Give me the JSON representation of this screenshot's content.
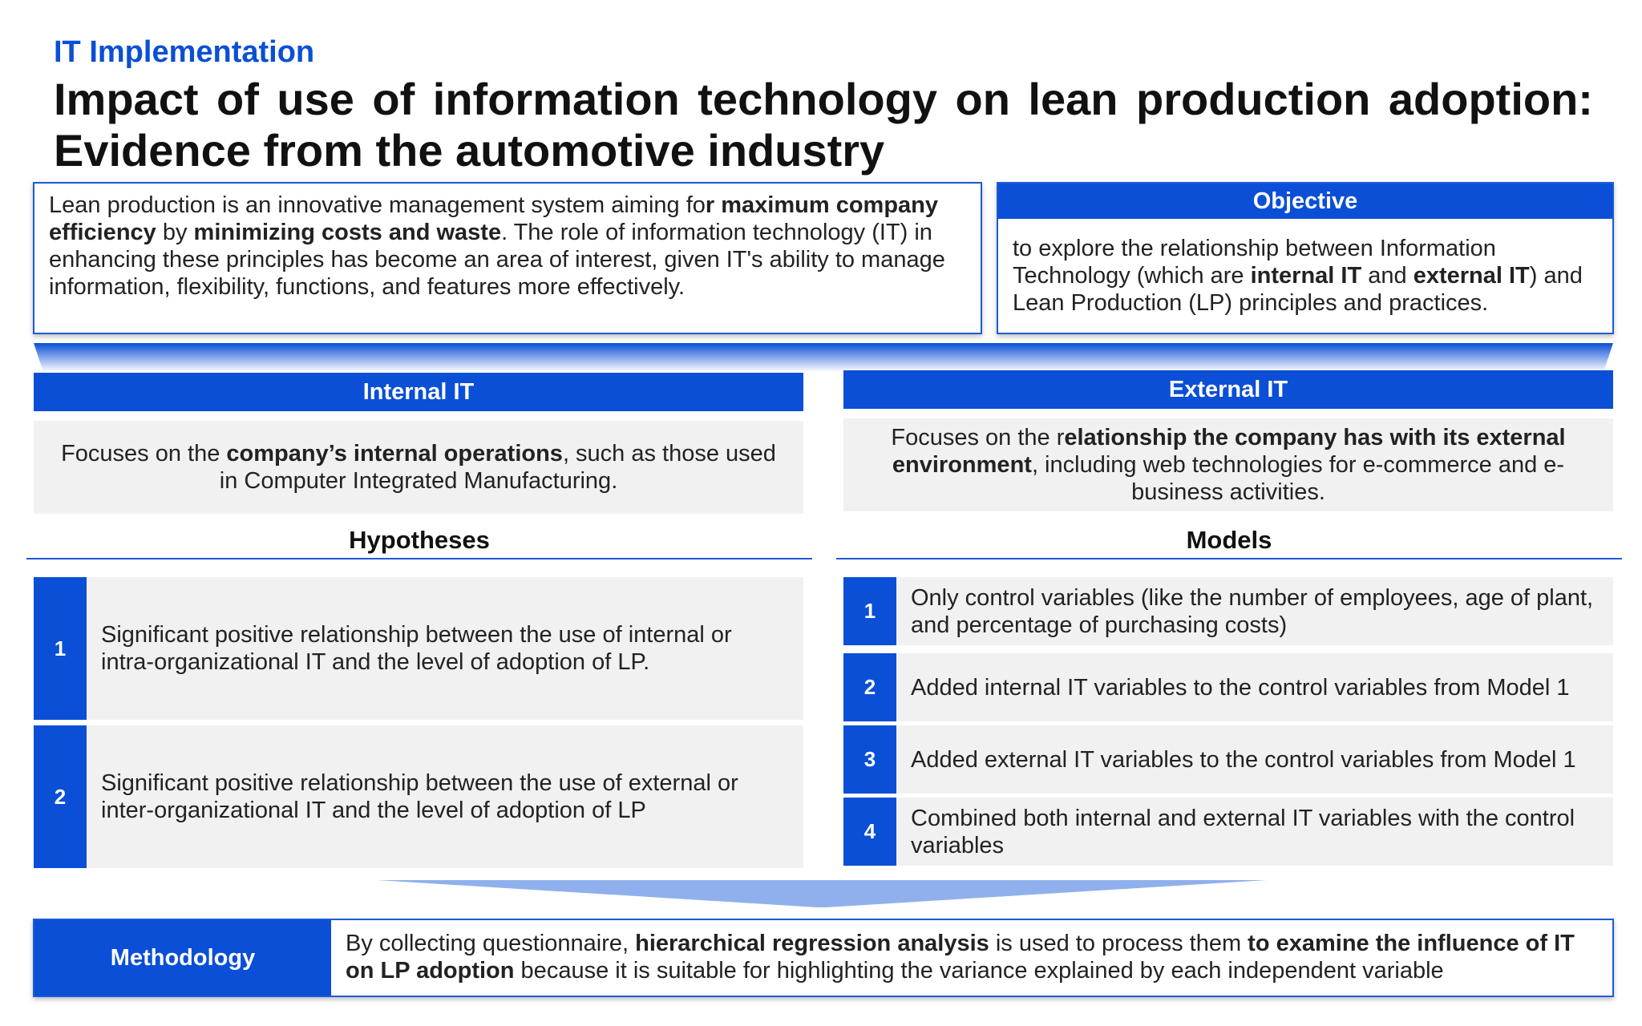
{
  "header": {
    "eyebrow": "IT Implementation",
    "title_line1_words": [
      "Impact",
      "of",
      "use",
      "of",
      "information",
      "technology",
      "on",
      "lean",
      "production",
      "adoption:"
    ],
    "title_line2": "Evidence from the automotive industry"
  },
  "intro": {
    "t1": "Lean production is an innovative management system aiming fo",
    "b1": "r maximum company efficiency",
    "t2": " by ",
    "b2": "minimizing costs and waste",
    "t3": ". The role of information technology (IT) in enhancing these principles has become an area of interest, given IT's ability to manage information, flexibility, functions, and features more effectively."
  },
  "objective": {
    "heading": "Objective",
    "t1": "to explore the relationship between Information Technology (which are ",
    "b1": "internal IT",
    "t2": " and ",
    "b2": "external IT",
    "t3": ") and Lean Production (LP) principles and practices."
  },
  "internal_it": {
    "heading": "Internal IT",
    "t1": "Focuses on the ",
    "b1": "company’s internal operations",
    "t2": ", such as those used in Computer Integrated Manufacturing."
  },
  "external_it": {
    "heading": "External IT",
    "t1": "Focuses on the r",
    "b1": "elationship the company has with its external environment",
    "t2": ", including web technologies for e-commerce and e-business activities."
  },
  "hypotheses": {
    "heading": "Hypotheses",
    "items": [
      {
        "num": "1",
        "text": "Significant positive relationship between the use of internal or intra-organizational IT and the level of adoption of LP."
      },
      {
        "num": "2",
        "text": "Significant positive relationship between the use of external or inter-organizational IT and the level of adoption of LP"
      }
    ]
  },
  "models": {
    "heading": "Models",
    "items": [
      {
        "num": "1",
        "text": "Only control variables (like the number of employees, age of plant, and percentage of purchasing costs)"
      },
      {
        "num": "2",
        "text": "Added internal IT variables to the control variables from Model 1"
      },
      {
        "num": "3",
        "text": "Added external IT variables to the control variables from Model 1"
      },
      {
        "num": "4",
        "text": "Combined both internal and external IT variables with the control variables"
      }
    ]
  },
  "methodology": {
    "label": "Methodology",
    "t1": "By collecting questionnaire, ",
    "b1": "hierarchical regression analysis",
    "t2": " is used to process them ",
    "b2": "to examine the influence of IT on LP adoption",
    "t3": " because it is suitable for highlighting the variance explained by each independent variable"
  },
  "colors": {
    "accent": "#0a4fd6",
    "panel": "#f1f1f1",
    "border": "#1c5bd8"
  }
}
